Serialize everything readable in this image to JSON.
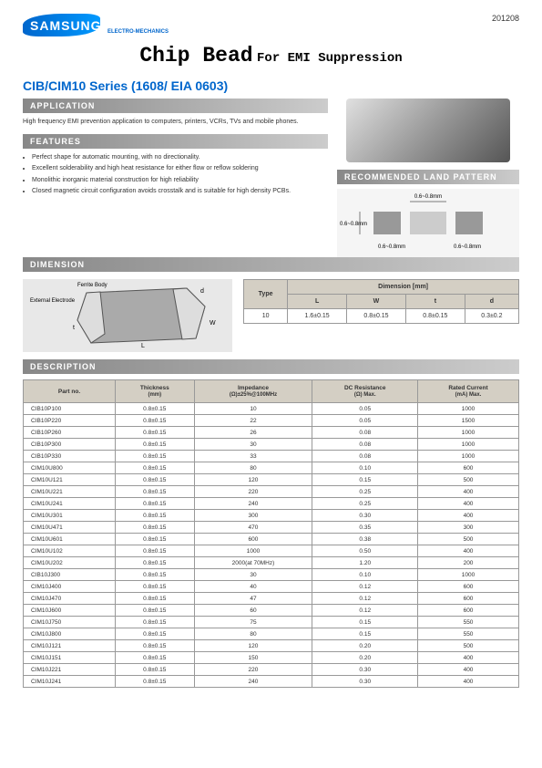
{
  "header": {
    "logo_brand": "SAMSUNG",
    "logo_subtitle": "ELECTRO-MECHANICS",
    "date": "201208"
  },
  "title": {
    "main": "Chip Bead",
    "sub": "For EMI Suppression"
  },
  "series": "CIB/CIM10 Series (1608/ EIA 0603)",
  "sections": {
    "application": "APPLICATION",
    "features": "FEATURES",
    "land_pattern": "RECOMMENDED LAND PATTERN",
    "dimension": "DIMENSION",
    "description": "DESCRIPTION"
  },
  "application_text": "High frequency EMI prevention application to computers, printers, VCRs, TVs and mobile phones.",
  "features": [
    "Perfect shape for automatic mounting, with no directionality.",
    "Excellent solderability and high heat resistance for either flow or reflow soldering",
    "Monolithic inorganic material construction for high reliability",
    "Closed magnetic circuit configuration avoids crosstalk and is suitable for high density PCBs."
  ],
  "land_dims": {
    "top": "0.6~0.8mm",
    "left": "0.6~0.8mm",
    "bottom1": "0.6~0.8mm",
    "bottom2": "0.6~0.8mm"
  },
  "dim_labels": {
    "ferrite": "Ferrite Body",
    "electrode": "External Electrode"
  },
  "dim_table": {
    "headers": {
      "type": "Type",
      "dimension": "Dimension [mm]",
      "L": "L",
      "W": "W",
      "t": "t",
      "d": "d"
    },
    "row": {
      "type": "10",
      "L": "1.6±0.15",
      "W": "0.8±0.15",
      "t": "0.8±0.15",
      "d": "0.3±0.2"
    }
  },
  "desc_headers": {
    "part": "Part no.",
    "thickness": "Thickness",
    "thickness_unit": "(mm)",
    "impedance": "Impedance",
    "impedance_unit": "(Ω)±25%@100MHz",
    "dc": "DC Resistance",
    "dc_unit": "(Ω) Max.",
    "current": "Rated Current",
    "current_unit": "(mA) Max."
  },
  "parts": [
    {
      "p": "CIB10P100",
      "t": "0.8±0.15",
      "i": "10",
      "r": "0.05",
      "c": "1000"
    },
    {
      "p": "CIB10P220",
      "t": "0.8±0.15",
      "i": "22",
      "r": "0.05",
      "c": "1500"
    },
    {
      "p": "CIB10P260",
      "t": "0.8±0.15",
      "i": "26",
      "r": "0.08",
      "c": "1000"
    },
    {
      "p": "CIB10P300",
      "t": "0.8±0.15",
      "i": "30",
      "r": "0.08",
      "c": "1000"
    },
    {
      "p": "CIB10P330",
      "t": "0.8±0.15",
      "i": "33",
      "r": "0.08",
      "c": "1000"
    },
    {
      "p": "CIM10U800",
      "t": "0.8±0.15",
      "i": "80",
      "r": "0.10",
      "c": "600"
    },
    {
      "p": "CIM10U121",
      "t": "0.8±0.15",
      "i": "120",
      "r": "0.15",
      "c": "500"
    },
    {
      "p": "CIM10U221",
      "t": "0.8±0.15",
      "i": "220",
      "r": "0.25",
      "c": "400"
    },
    {
      "p": "CIM10U241",
      "t": "0.8±0.15",
      "i": "240",
      "r": "0.25",
      "c": "400"
    },
    {
      "p": "CIM10U301",
      "t": "0.8±0.15",
      "i": "300",
      "r": "0.30",
      "c": "400"
    },
    {
      "p": "CIM10U471",
      "t": "0.8±0.15",
      "i": "470",
      "r": "0.35",
      "c": "300"
    },
    {
      "p": "CIM10U601",
      "t": "0.8±0.15",
      "i": "600",
      "r": "0.38",
      "c": "500"
    },
    {
      "p": "CIM10U102",
      "t": "0.8±0.15",
      "i": "1000",
      "r": "0.50",
      "c": "400"
    },
    {
      "p": "CIM10U202",
      "t": "0.8±0.15",
      "i": "2000(at 70MHz)",
      "r": "1.20",
      "c": "200"
    },
    {
      "p": "CIB10J300",
      "t": "0.8±0.15",
      "i": "30",
      "r": "0.10",
      "c": "1000"
    },
    {
      "p": "CIM10J400",
      "t": "0.8±0.15",
      "i": "40",
      "r": "0.12",
      "c": "600"
    },
    {
      "p": "CIM10J470",
      "t": "0.8±0.15",
      "i": "47",
      "r": "0.12",
      "c": "600"
    },
    {
      "p": "CIM10J600",
      "t": "0.8±0.15",
      "i": "60",
      "r": "0.12",
      "c": "600"
    },
    {
      "p": "CIM10J750",
      "t": "0.8±0.15",
      "i": "75",
      "r": "0.15",
      "c": "550"
    },
    {
      "p": "CIM10J800",
      "t": "0.8±0.15",
      "i": "80",
      "r": "0.15",
      "c": "550"
    },
    {
      "p": "CIM10J121",
      "t": "0.8±0.15",
      "i": "120",
      "r": "0.20",
      "c": "500"
    },
    {
      "p": "CIM10J151",
      "t": "0.8±0.15",
      "i": "150",
      "r": "0.20",
      "c": "400"
    },
    {
      "p": "CIM10J221",
      "t": "0.8±0.15",
      "i": "220",
      "r": "0.30",
      "c": "400"
    },
    {
      "p": "CIM10J241",
      "t": "0.8±0.15",
      "i": "240",
      "r": "0.30",
      "c": "400"
    }
  ],
  "colors": {
    "accent": "#0066cc",
    "section_bg": "#888888",
    "table_header": "#d4cfc4",
    "border": "#999999"
  }
}
